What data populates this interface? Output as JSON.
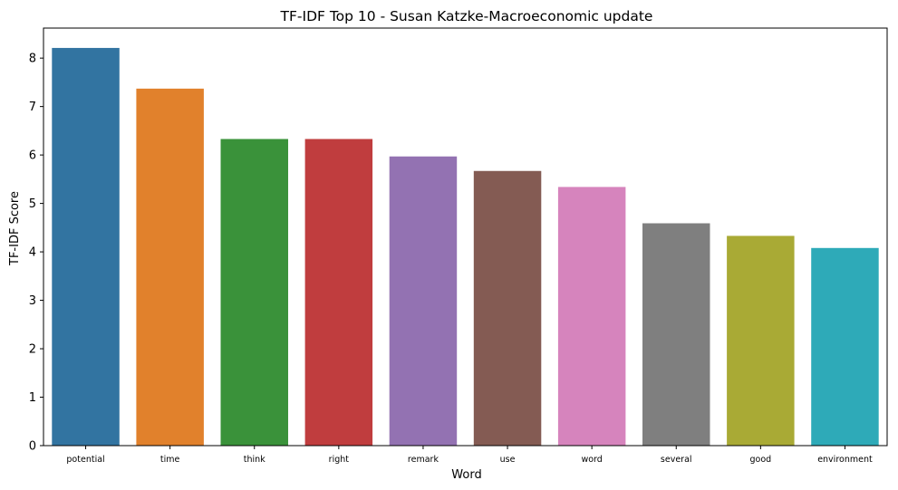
{
  "chart_data": {
    "type": "bar",
    "title": "TF-IDF Top 10 - Susan Katzke-Macroeconomic update",
    "xlabel": "Word",
    "ylabel": "TF-IDF Score",
    "categories": [
      "potential",
      "time",
      "think",
      "right",
      "remark",
      "use",
      "word",
      "several",
      "good",
      "environment"
    ],
    "values": [
      8.21,
      7.37,
      6.33,
      6.33,
      5.97,
      5.67,
      5.34,
      4.59,
      4.33,
      4.08
    ],
    "colors": [
      "#3274a1",
      "#e1812c",
      "#3a923a",
      "#c03d3e",
      "#9372b2",
      "#845b53",
      "#d684bd",
      "#7f7f7f",
      "#a9aa35",
      "#2eaab8"
    ],
    "yticks": [
      0,
      1,
      2,
      3,
      4,
      5,
      6,
      7,
      8
    ],
    "ylim": [
      0,
      8.62
    ],
    "grid": false,
    "legend": "none"
  }
}
